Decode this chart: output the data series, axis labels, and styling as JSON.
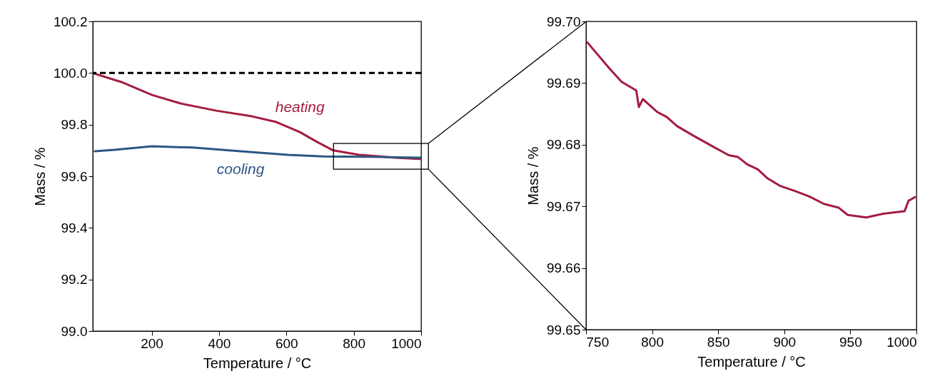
{
  "chart_data": [
    {
      "type": "line",
      "xlabel": "Temperature / °C",
      "ylabel": "Mass / %",
      "xlim": [
        25,
        1000
      ],
      "ylim": [
        99.0,
        100.2
      ],
      "xticks": [
        200,
        400,
        600,
        800,
        1000
      ],
      "yticks": [
        {
          "value": 99.0,
          "label": "99.0"
        },
        99.2,
        99.4,
        99.6,
        99.8,
        {
          "value": 100.0,
          "label": "100.0"
        },
        100.2
      ],
      "series": [
        {
          "name": "heating",
          "color": "#a51c40",
          "x": [
            25,
            110,
            201,
            286,
            392,
            498,
            570,
            640,
            688,
            739,
            816,
            922,
            994,
            1000
          ],
          "values": [
            100.0,
            99.965,
            99.915,
            99.882,
            99.854,
            99.832,
            99.81,
            99.771,
            99.735,
            99.7,
            99.683,
            99.672,
            99.667,
            99.667
          ]
        },
        {
          "name": "cooling",
          "color": "#2a5783",
          "x": [
            31,
            89,
            201,
            322,
            464,
            604,
            710,
            852,
            994,
            1000
          ],
          "values": [
            99.697,
            99.702,
            99.716,
            99.711,
            99.697,
            99.683,
            99.677,
            99.675,
            99.672,
            99.672
          ]
        }
      ],
      "ref_lines": [
        {
          "axis": "y",
          "value": 100.0,
          "color": "#000000",
          "line_style": "dashed"
        }
      ]
    },
    {
      "type": "line",
      "xlabel": "Temperature / °C",
      "ylabel": "Mass / %",
      "xlim": [
        750,
        1000
      ],
      "ylim": [
        99.65,
        99.7
      ],
      "xticks": [
        750,
        800,
        850,
        900,
        950,
        1000
      ],
      "yticks": [
        99.65,
        99.66,
        99.67,
        99.68,
        99.69,
        {
          "value": 99.7,
          "label": "99.70"
        }
      ],
      "series": [
        {
          "color": "#a51c40",
          "x": [
            751,
            768,
            777,
            788,
            790,
            793,
            804,
            811,
            819,
            831,
            846,
            858,
            865,
            872,
            880,
            887,
            897,
            908,
            919,
            930,
            941,
            948,
            962,
            975,
            991,
            994,
            999
          ],
          "values": [
            99.6966,
            99.6923,
            99.6902,
            99.6888,
            99.6861,
            99.6874,
            99.6853,
            99.6845,
            99.683,
            99.6815,
            99.6797,
            99.6783,
            99.678,
            99.6768,
            99.676,
            99.6746,
            99.6733,
            99.6725,
            99.6716,
            99.6704,
            99.6698,
            99.6686,
            99.6682,
            99.6688,
            99.6692,
            99.6709,
            99.6715
          ]
        }
      ]
    }
  ]
}
